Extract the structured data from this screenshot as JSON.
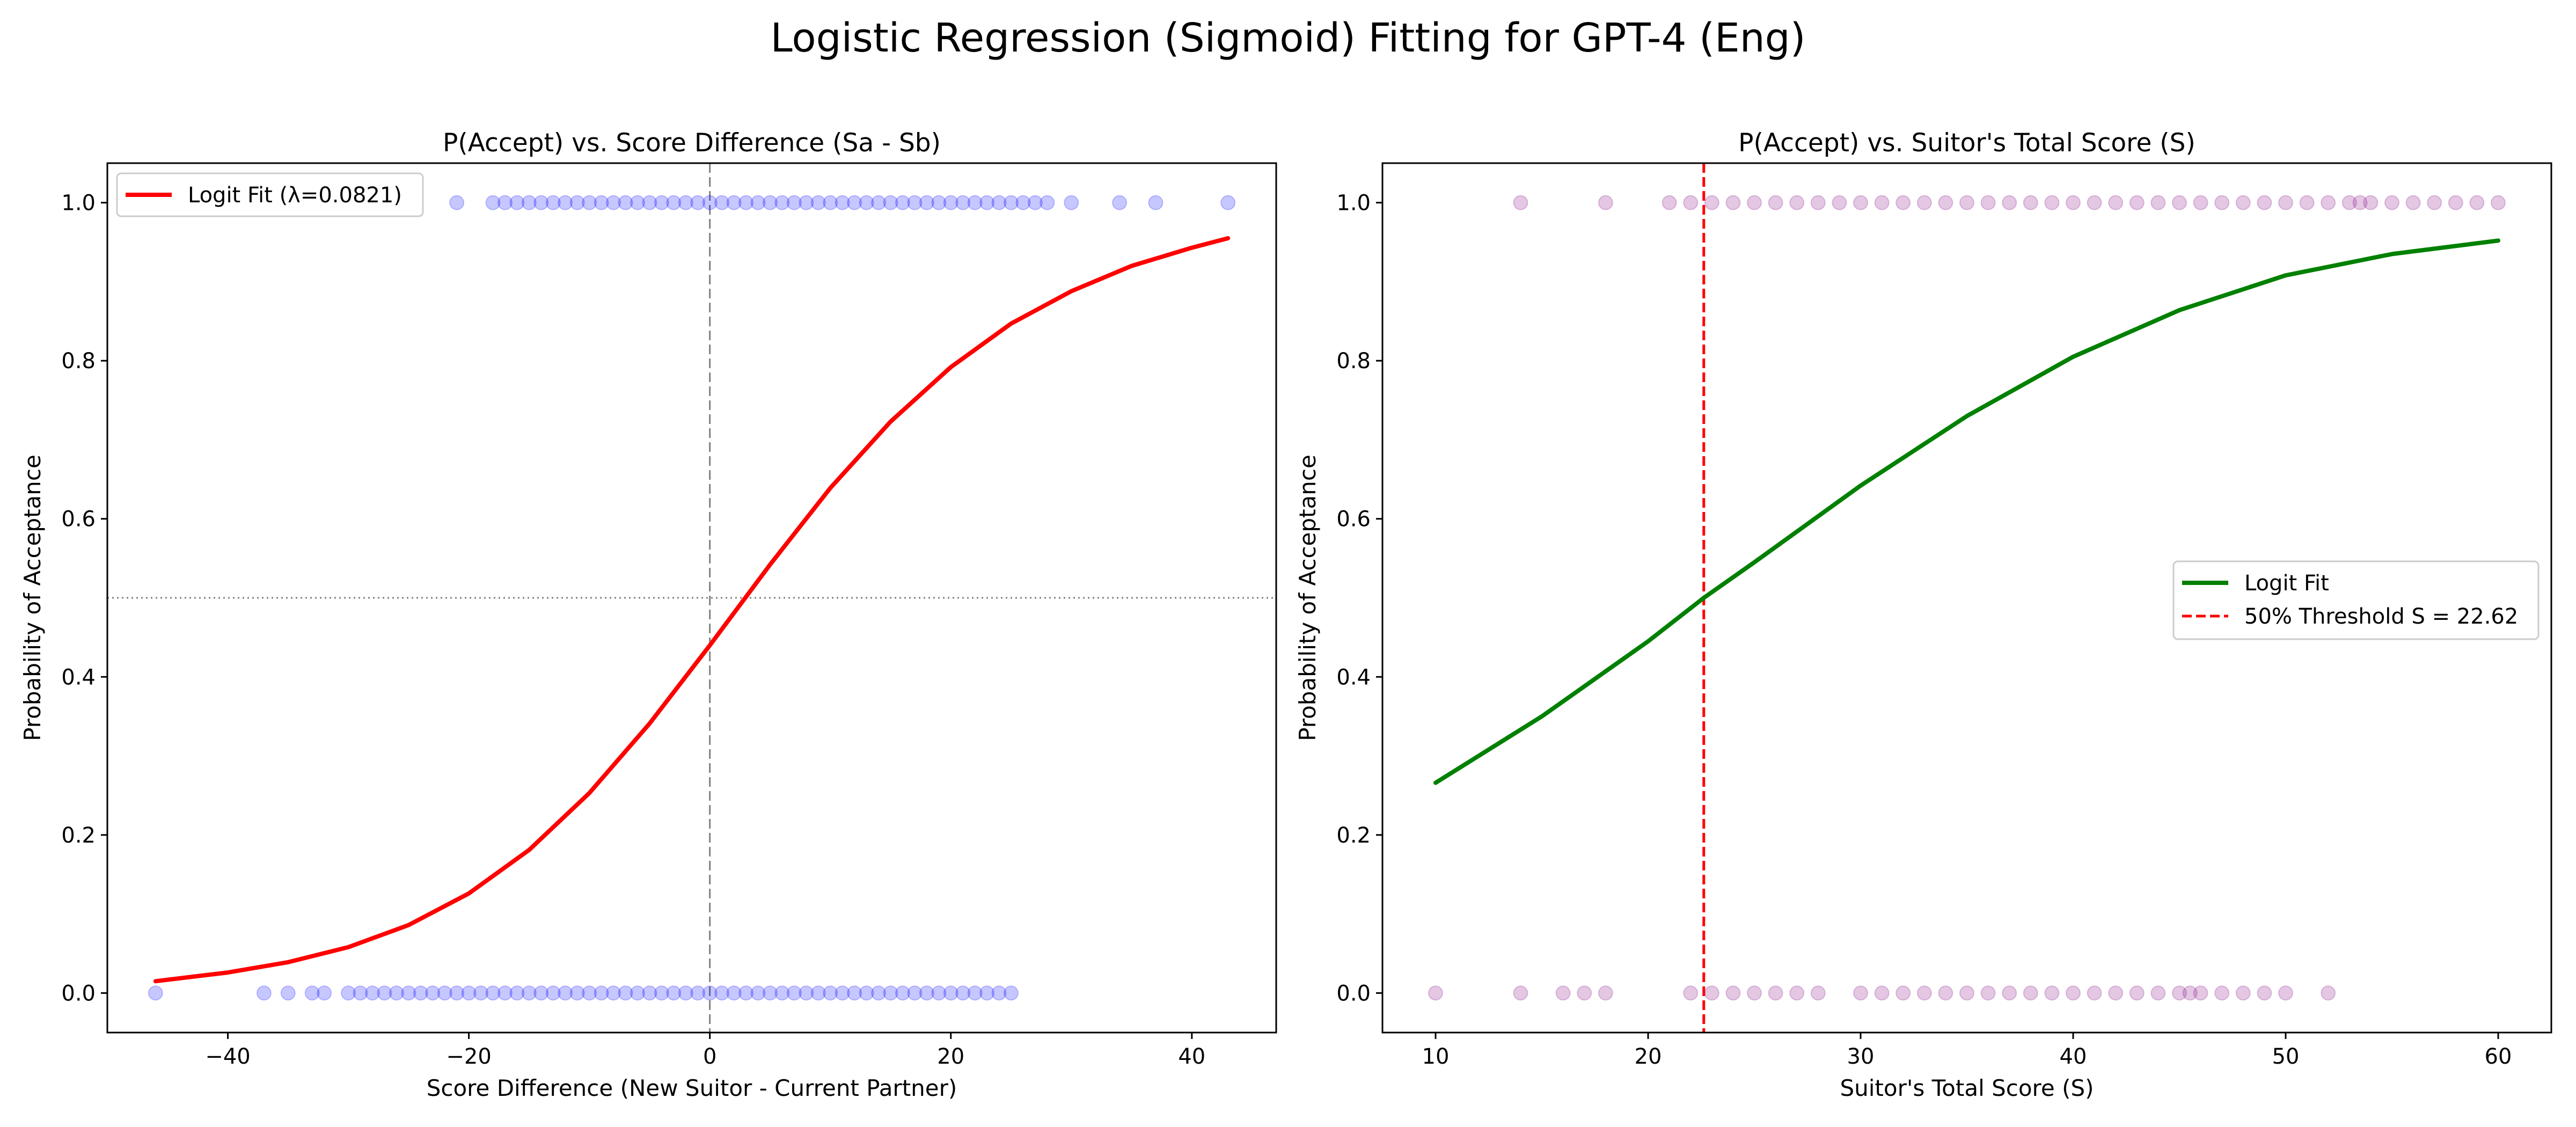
{
  "figure": {
    "suptitle": "Logistic Regression (Sigmoid) Fitting for GPT-4 (Eng)"
  },
  "chart_data": [
    {
      "type": "scatter",
      "title": "P(Accept) vs. Score Difference (Sa - Sb)",
      "xlabel": "Score Difference (New Suitor - Current Partner)",
      "ylabel": "Probability of Acceptance",
      "xlim": [
        -50,
        47
      ],
      "ylim": [
        -0.05,
        1.05
      ],
      "xticks": [
        -40,
        -20,
        0,
        20,
        40
      ],
      "yticks": [
        0.0,
        0.2,
        0.4,
        0.6,
        0.8,
        1.0
      ],
      "grid": false,
      "legend_position": "upper left",
      "reference_lines": [
        {
          "orientation": "vertical",
          "x": 0,
          "style": "dashed",
          "color": "#808080"
        },
        {
          "orientation": "horizontal",
          "y": 0.5,
          "style": "dotted",
          "color": "#808080"
        }
      ],
      "series": [
        {
          "name": "Logit Fit (λ=0.0821)",
          "kind": "line",
          "color": "#ff0000",
          "x": [
            -46,
            -40,
            -35,
            -30,
            -25,
            -20,
            -15,
            -10,
            -5,
            0,
            5,
            10,
            15,
            20,
            25,
            30,
            35,
            40,
            43
          ],
          "y": [
            0.015,
            0.026,
            0.039,
            0.058,
            0.086,
            0.126,
            0.181,
            0.253,
            0.341,
            0.44,
            0.542,
            0.639,
            0.723,
            0.792,
            0.847,
            0.888,
            0.92,
            0.943,
            0.955
          ]
        },
        {
          "kind": "points",
          "color": "#0000ff",
          "alpha": 0.22,
          "accepted_x": [
            -21,
            -18,
            -17,
            -16,
            -15,
            -14,
            -13,
            -12,
            -11,
            -10,
            -9,
            -8,
            -7,
            -6,
            -5,
            -4,
            -3,
            -2,
            -1,
            0,
            1,
            2,
            3,
            4,
            5,
            6,
            7,
            8,
            9,
            10,
            11,
            12,
            13,
            14,
            15,
            16,
            17,
            18,
            19,
            20,
            21,
            22,
            23,
            24,
            25,
            26,
            27,
            28,
            30,
            34,
            37,
            43
          ],
          "rejected_x": [
            -46,
            -37,
            -35,
            -33,
            -32,
            -30,
            -29,
            -28,
            -27,
            -26,
            -25,
            -24,
            -23,
            -22,
            -21,
            -20,
            -19,
            -18,
            -17,
            -16,
            -15,
            -14,
            -13,
            -12,
            -11,
            -10,
            -9,
            -8,
            -7,
            -6,
            -5,
            -4,
            -3,
            -2,
            -1,
            0,
            1,
            2,
            3,
            4,
            5,
            6,
            7,
            8,
            9,
            10,
            11,
            12,
            13,
            14,
            15,
            16,
            17,
            18,
            19,
            20,
            21,
            22,
            23,
            24,
            25
          ]
        }
      ]
    },
    {
      "type": "scatter",
      "title": "P(Accept) vs. Suitor's Total Score (S)",
      "xlabel": "Suitor's Total Score (S)",
      "ylabel": "Probability of Acceptance",
      "xlim": [
        7.5,
        62.5
      ],
      "ylim": [
        -0.05,
        1.05
      ],
      "xticks": [
        10,
        20,
        30,
        40,
        50,
        60
      ],
      "yticks": [
        0.0,
        0.2,
        0.4,
        0.6,
        0.8,
        1.0
      ],
      "grid": false,
      "legend_position": "center right",
      "reference_lines": [
        {
          "orientation": "vertical",
          "x": 22.62,
          "style": "dashed",
          "color": "#ff0000",
          "legend": "50% Threshold S = 22.62"
        }
      ],
      "series": [
        {
          "name": "Logit Fit",
          "kind": "line",
          "color": "#008000",
          "x": [
            10,
            15,
            20,
            22.62,
            25,
            30,
            35,
            40,
            45,
            50,
            55,
            60
          ],
          "y": [
            0.266,
            0.35,
            0.445,
            0.5,
            0.545,
            0.642,
            0.73,
            0.805,
            0.864,
            0.908,
            0.935,
            0.952
          ]
        },
        {
          "kind": "points",
          "color": "#800080",
          "alpha": 0.22,
          "accepted_x": [
            14,
            18,
            21,
            22,
            23,
            24,
            25,
            26,
            27,
            28,
            29,
            30,
            31,
            32,
            33,
            34,
            35,
            36,
            37,
            38,
            39,
            40,
            41,
            42,
            43,
            44,
            45,
            46,
            47,
            48,
            49,
            50,
            51,
            52,
            53,
            53.5,
            54,
            55,
            56,
            57,
            58,
            59,
            60
          ],
          "rejected_x": [
            10,
            14,
            16,
            17,
            18,
            22,
            23,
            24,
            25,
            26,
            27,
            28,
            30,
            31,
            32,
            33,
            34,
            35,
            36,
            37,
            38,
            39,
            40,
            41,
            42,
            43,
            44,
            45,
            45.5,
            46,
            47,
            48,
            49,
            50,
            52
          ]
        }
      ]
    }
  ]
}
